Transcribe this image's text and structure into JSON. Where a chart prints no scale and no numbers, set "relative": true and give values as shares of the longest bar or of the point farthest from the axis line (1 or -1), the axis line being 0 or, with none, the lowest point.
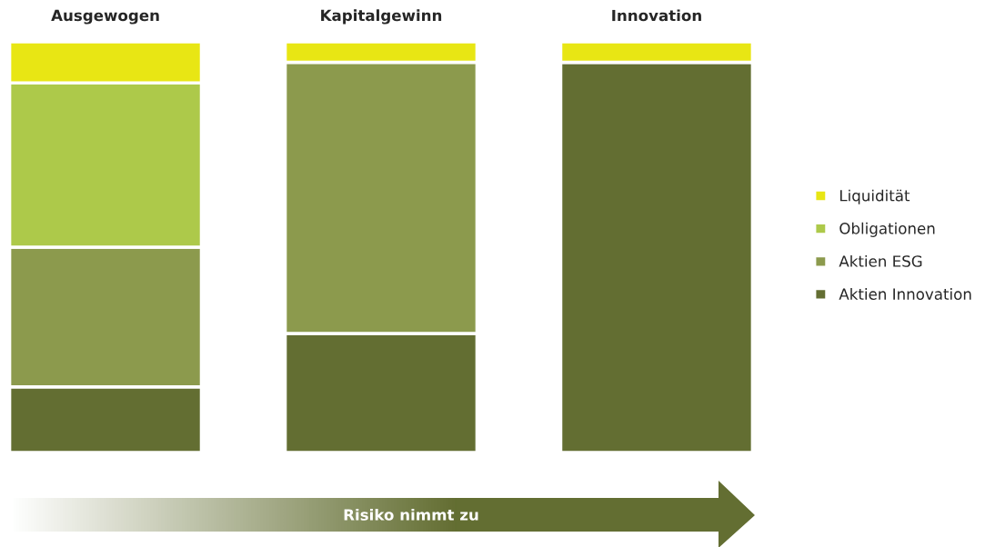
{
  "chart_data": {
    "type": "bar",
    "stacked": true,
    "relative": true,
    "categories": [
      "Ausgewogen",
      "Kapitalgewinn",
      "Innovation"
    ],
    "series": [
      {
        "name": "Aktien Innovation",
        "color": "#636e32",
        "values": [
          0.16,
          0.29,
          0.95
        ]
      },
      {
        "name": "Aktien ESG",
        "color": "#8c9a4d",
        "values": [
          0.34,
          0.66,
          0
        ]
      },
      {
        "name": "Obligationen",
        "color": "#adc94a",
        "values": [
          0.4,
          0,
          0
        ]
      },
      {
        "name": "Liquidität",
        "color": "#e8e614",
        "values": [
          0.1,
          0.05,
          0.05
        ]
      }
    ],
    "legend": "right",
    "annotations": [
      "Risiko nimmt zu"
    ]
  }
}
